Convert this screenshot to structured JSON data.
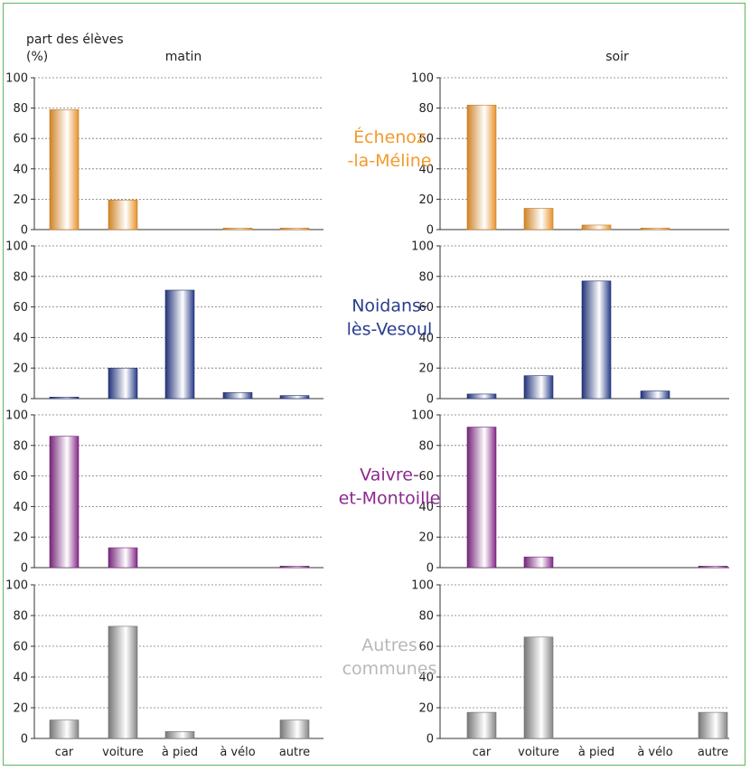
{
  "chart_data": {
    "type": "bar",
    "ylabel_line1": "part des élèves",
    "ylabel_line2": "(%)",
    "columns": [
      "matin",
      "soir"
    ],
    "categories": [
      "car",
      "voiture",
      "à pied",
      "à vélo",
      "autre"
    ],
    "yticks": [
      "0",
      "20",
      "40",
      "60",
      "80",
      "100"
    ],
    "ylim": [
      0,
      100
    ],
    "grid": "horizontal dashed",
    "rows": [
      {
        "name_line1": "Échenoz",
        "name_line2": "-la-Méline",
        "color": "#f39a2d",
        "matin": [
          79,
          19.5,
          0,
          1,
          1
        ],
        "soir": [
          82,
          14,
          3,
          1,
          0
        ]
      },
      {
        "name_line1": "Noidans-",
        "name_line2": "lès-Vesoul",
        "color": "#283d8e",
        "matin": [
          1,
          20,
          71,
          4,
          2
        ],
        "soir": [
          3,
          15,
          77,
          5,
          0
        ]
      },
      {
        "name_line1": "Vaivre-",
        "name_line2": "et-Montoille",
        "color": "#8a2a8e",
        "matin": [
          86,
          13,
          0,
          0,
          1
        ],
        "soir": [
          92,
          7,
          0,
          0,
          1
        ]
      },
      {
        "name_line1": "Autres",
        "name_line2": "communes",
        "color": "#8c8c8c",
        "name_color": "#b8b8b8",
        "matin": [
          12,
          73,
          4.5,
          0,
          12
        ],
        "soir": [
          17,
          66,
          0,
          0,
          17
        ]
      }
    ]
  }
}
